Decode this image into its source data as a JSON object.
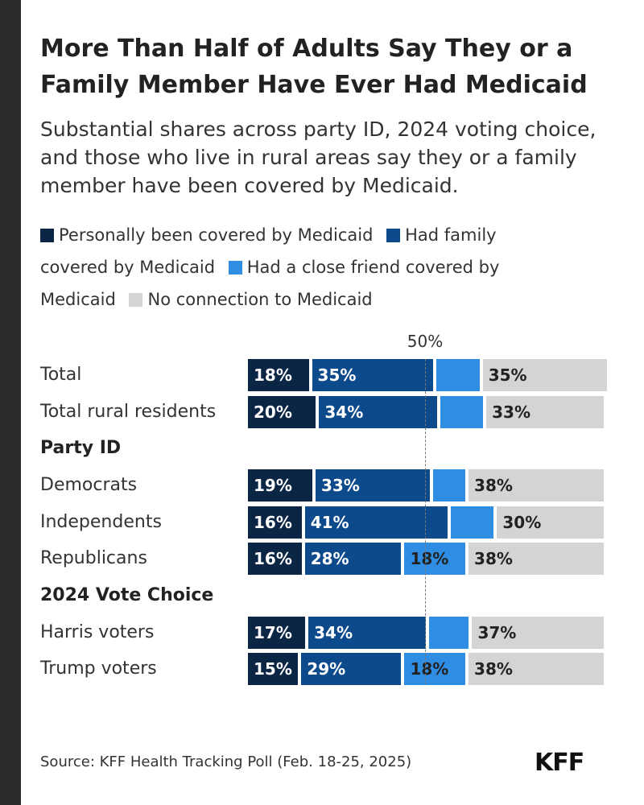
{
  "title": "More Than Half of Adults Say They or a Family Member Have Ever Had Medicaid",
  "subtitle": "Substantial shares across party ID, 2024 voting choice, and those who live in rural areas say they or a family member have been covered by Medicaid.",
  "legend": [
    {
      "label": "Personally been covered by Medicaid",
      "color": "#0b2545"
    },
    {
      "label": "Had family covered by Medicaid",
      "color": "#0d4a8c"
    },
    {
      "label": "Had a close friend covered by Medicaid",
      "color": "#2f8de4"
    },
    {
      "label": "No connection to Medicaid",
      "color": "#d4d4d4"
    }
  ],
  "reference_label": "50%",
  "source": "Source: KFF Health Tracking Poll (Feb. 18-25, 2025)",
  "logo": "KFF",
  "chart_data": {
    "type": "bar",
    "orientation": "horizontal",
    "stacked": true,
    "reference_line": 50,
    "categories": [
      "Total",
      "Total rural residents",
      "Democrats",
      "Independents",
      "Republicans",
      "Harris voters",
      "Trump voters"
    ],
    "groups": [
      {
        "header": null,
        "rows": [
          "Total",
          "Total rural residents"
        ]
      },
      {
        "header": "Party ID",
        "rows": [
          "Democrats",
          "Independents",
          "Republicans"
        ]
      },
      {
        "header": "2024 Vote Choice",
        "rows": [
          "Harris voters",
          "Trump voters"
        ]
      }
    ],
    "series": [
      {
        "name": "Personally been covered by Medicaid",
        "values": [
          18,
          20,
          19,
          16,
          16,
          17,
          15
        ],
        "labels": [
          "18%",
          "20%",
          "19%",
          "16%",
          "16%",
          "17%",
          "15%"
        ]
      },
      {
        "name": "Had family covered by Medicaid",
        "values": [
          35,
          34,
          33,
          41,
          28,
          34,
          29
        ],
        "labels": [
          "35%",
          "34%",
          "33%",
          "41%",
          "28%",
          "34%",
          "29%"
        ]
      },
      {
        "name": "Had a close friend covered by Medicaid",
        "values": [
          13,
          13,
          10,
          13,
          18,
          12,
          18
        ],
        "labels": [
          "",
          "",
          "",
          "",
          "18%",
          "",
          "18%"
        ]
      },
      {
        "name": "No connection to Medicaid",
        "values": [
          35,
          33,
          38,
          30,
          38,
          37,
          38
        ],
        "labels": [
          "35%",
          "33%",
          "38%",
          "30%",
          "38%",
          "37%",
          "38%"
        ]
      }
    ]
  }
}
